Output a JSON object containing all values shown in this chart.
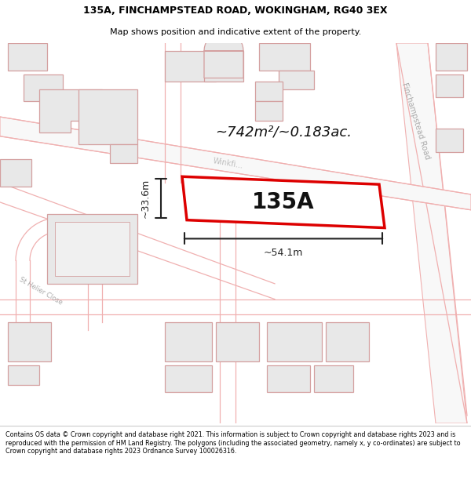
{
  "title_line1": "135A, FINCHAMPSTEAD ROAD, WOKINGHAM, RG40 3EX",
  "title_line2": "Map shows position and indicative extent of the property.",
  "footer_text": "Contains OS data © Crown copyright and database right 2021. This information is subject to Crown copyright and database rights 2023 and is reproduced with the permission of HM Land Registry. The polygons (including the associated geometry, namely x, y co-ordinates) are subject to Crown copyright and database rights 2023 Ordnance Survey 100026316.",
  "property_label": "135A",
  "area_label": "~742m²/~0.183ac.",
  "width_label": "~54.1m",
  "height_label": "~33.6m",
  "road_label": "Finchampstead Road",
  "winkfield_label": "Winkfi...",
  "close_label": "St Helier Close",
  "bg_color": "#ffffff",
  "map_bg": "#f7f7f7",
  "building_fill": "#e8e8e8",
  "building_stroke": "#d4a0a0",
  "road_stroke": "#f0b0b0",
  "plot_stroke": "#dd0000",
  "plot_fill": "#ffffff",
  "dim_color": "#222222",
  "title_color": "#000000",
  "footer_color": "#000000"
}
